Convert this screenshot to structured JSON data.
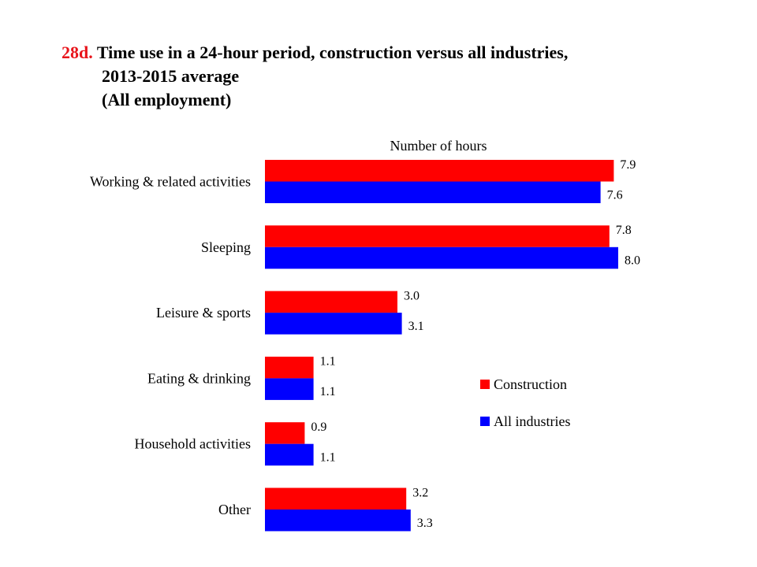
{
  "title": {
    "number": "28d.",
    "line1": "Time use in a 24-hour period, construction versus all industries,",
    "line2": "2013-2015 average",
    "line3": "(All employment)"
  },
  "chart_data": {
    "type": "bar",
    "orientation": "horizontal",
    "xlabel": "Number of hours",
    "categories": [
      "Working & related activities",
      "Sleeping",
      "Leisure & sports",
      "Eating & drinking",
      "Household activities",
      "Other"
    ],
    "series": [
      {
        "name": "Construction",
        "color": "#ff0000",
        "values": [
          7.9,
          7.8,
          3.0,
          1.1,
          0.9,
          3.2
        ],
        "labels": [
          "7.9",
          "7.8",
          "3.0",
          "1.1",
          "0.9",
          "3.2"
        ]
      },
      {
        "name": "All industries",
        "color": "#0000ff",
        "values": [
          7.6,
          8.0,
          3.1,
          1.1,
          1.1,
          3.3
        ],
        "labels": [
          "7.6",
          "8.0",
          "3.1",
          "1.1",
          "1.1",
          "3.3"
        ]
      }
    ],
    "xlim": [
      0,
      8
    ],
    "grid": false,
    "legend_position": "right"
  }
}
